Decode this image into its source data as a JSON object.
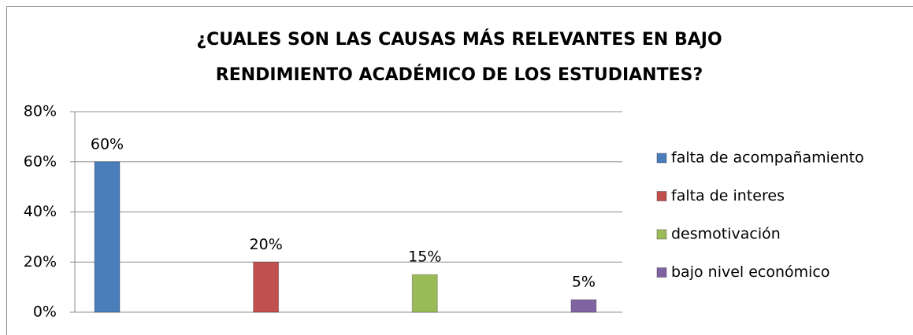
{
  "chart_data": {
    "type": "bar",
    "title": [
      "¿CUALES SON LAS CAUSAS MÁS RELEVANTES EN BAJO",
      "RENDIMIENTO ACADÉMICO DE LOS ESTUDIANTES?"
    ],
    "categories": [
      null
    ],
    "series": [
      {
        "name": "falta de acompañamiento",
        "color": "#4a7ebb",
        "values": [
          60
        ],
        "value_labels": [
          "60%"
        ]
      },
      {
        "name": "falta de interes",
        "color": "#c0504d",
        "values": [
          20
        ],
        "value_labels": [
          "20%"
        ]
      },
      {
        "name": "desmotivación",
        "color": "#9bbb59",
        "values": [
          15
        ],
        "value_labels": [
          "15%"
        ]
      },
      {
        "name": "bajo nivel económico",
        "color": "#8064a2",
        "values": [
          5
        ],
        "value_labels": [
          "5%"
        ]
      }
    ],
    "ylim": [
      0,
      80
    ],
    "yticks": [
      {
        "value": 0,
        "label": "0%"
      },
      {
        "value": 20,
        "label": "20%"
      },
      {
        "value": 40,
        "label": "40%"
      },
      {
        "value": 60,
        "label": "60%"
      },
      {
        "value": 80,
        "label": "80%"
      }
    ],
    "grid": true,
    "legend": "right"
  }
}
